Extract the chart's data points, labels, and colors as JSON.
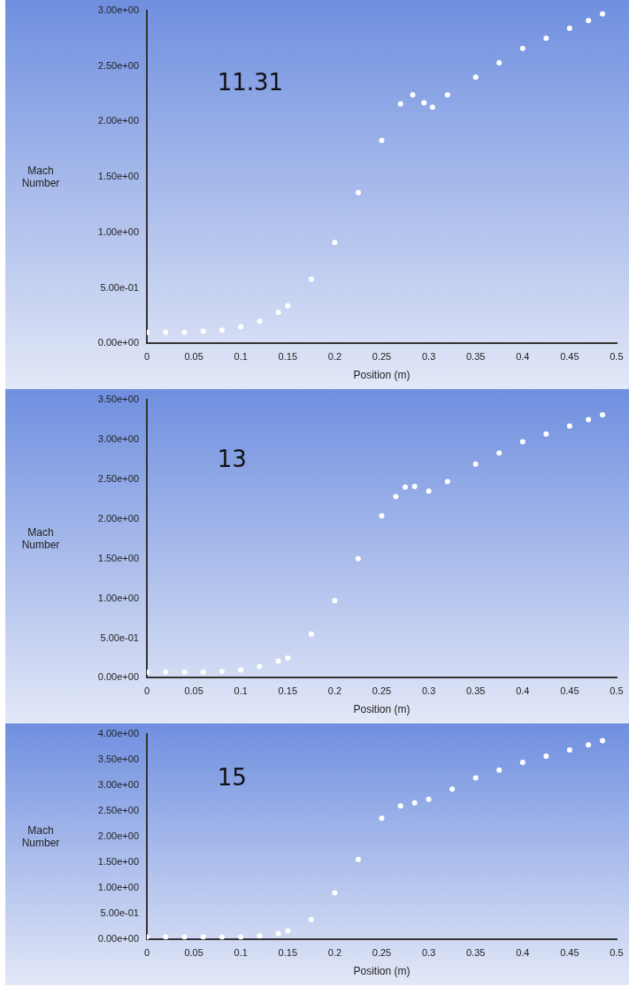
{
  "chart_data": [
    {
      "type": "scatter",
      "xlabel": "Position (m)",
      "ylabel": "Mach Number",
      "annotations": [
        "11.31"
      ],
      "marker": "circle",
      "grid": false,
      "legend": false,
      "xlim": [
        0,
        0.5
      ],
      "xticks": [
        0,
        0.05,
        0.1,
        0.15,
        0.2,
        0.25,
        0.3,
        0.35,
        0.4,
        0.45,
        0.5
      ],
      "ylim": [
        0,
        3
      ],
      "yticks": [
        {
          "value": 0,
          "label": "0.00e+00"
        },
        {
          "value": 0.5,
          "label": "5.00e-01"
        },
        {
          "value": 1,
          "label": "1.00e+00"
        },
        {
          "value": 1.5,
          "label": "1.50e+00"
        },
        {
          "value": 2,
          "label": "2.00e+00"
        },
        {
          "value": 2.5,
          "label": "2.50e+00"
        },
        {
          "value": 3,
          "label": "3.00e+00"
        }
      ],
      "series": [
        {
          "color": "#ffffff",
          "x": [
            0,
            0.02,
            0.04,
            0.06,
            0.08,
            0.1,
            0.12,
            0.14,
            0.15,
            0.175,
            0.2,
            0.225,
            0.25,
            0.27,
            0.283,
            0.295,
            0.304,
            0.32,
            0.35,
            0.375,
            0.4,
            0.425,
            0.45,
            0.47,
            0.485
          ],
          "values": [
            0.1,
            0.1,
            0.1,
            0.11,
            0.12,
            0.15,
            0.2,
            0.28,
            0.34,
            0.58,
            0.91,
            1.36,
            1.83,
            2.16,
            2.24,
            2.17,
            2.13,
            2.24,
            2.4,
            2.53,
            2.66,
            2.75,
            2.84,
            2.91,
            2.97
          ]
        }
      ]
    },
    {
      "type": "scatter",
      "xlabel": "Position (m)",
      "ylabel": "Mach Number",
      "annotations": [
        "13"
      ],
      "marker": "circle",
      "grid": false,
      "legend": false,
      "xlim": [
        0,
        0.5
      ],
      "xticks": [
        0,
        0.05,
        0.1,
        0.15,
        0.2,
        0.25,
        0.3,
        0.35,
        0.4,
        0.45,
        0.5
      ],
      "ylim": [
        0,
        3.5
      ],
      "yticks": [
        {
          "value": 0,
          "label": "0.00e+00"
        },
        {
          "value": 0.5,
          "label": "5.00e-01"
        },
        {
          "value": 1,
          "label": "1.00e+00"
        },
        {
          "value": 1.5,
          "label": "1.50e+00"
        },
        {
          "value": 2,
          "label": "2.00e+00"
        },
        {
          "value": 2.5,
          "label": "2.50e+00"
        },
        {
          "value": 3,
          "label": "3.00e+00"
        },
        {
          "value": 3.5,
          "label": "3.50e+00"
        }
      ],
      "series": [
        {
          "color": "#ffffff",
          "x": [
            0,
            0.02,
            0.04,
            0.06,
            0.08,
            0.1,
            0.12,
            0.14,
            0.15,
            0.175,
            0.2,
            0.225,
            0.25,
            0.265,
            0.275,
            0.285,
            0.3,
            0.32,
            0.35,
            0.375,
            0.4,
            0.425,
            0.45,
            0.47,
            0.485
          ],
          "values": [
            0.07,
            0.07,
            0.07,
            0.07,
            0.08,
            0.1,
            0.14,
            0.21,
            0.25,
            0.55,
            0.97,
            1.5,
            2.04,
            2.28,
            2.4,
            2.41,
            2.35,
            2.47,
            2.69,
            2.83,
            2.97,
            3.07,
            3.17,
            3.25,
            3.31
          ]
        }
      ]
    },
    {
      "type": "scatter",
      "xlabel": "Position (m)",
      "ylabel": "Mach Number",
      "annotations": [
        "15"
      ],
      "marker": "circle",
      "grid": false,
      "legend": false,
      "xlim": [
        0,
        0.5
      ],
      "xticks": [
        0,
        0.05,
        0.1,
        0.15,
        0.2,
        0.25,
        0.3,
        0.35,
        0.4,
        0.45,
        0.5
      ],
      "ylim": [
        0,
        4
      ],
      "yticks": [
        {
          "value": 0,
          "label": "0.00e+00"
        },
        {
          "value": 0.5,
          "label": "5.00e-01"
        },
        {
          "value": 1,
          "label": "1.00e+00"
        },
        {
          "value": 1.5,
          "label": "1.50e+00"
        },
        {
          "value": 2,
          "label": "2.00e+00"
        },
        {
          "value": 2.5,
          "label": "2.50e+00"
        },
        {
          "value": 3,
          "label": "3.00e+00"
        },
        {
          "value": 3.5,
          "label": "3.50e+00"
        },
        {
          "value": 4,
          "label": "4.00e+00"
        }
      ],
      "series": [
        {
          "color": "#ffffff",
          "x": [
            0,
            0.02,
            0.04,
            0.06,
            0.08,
            0.1,
            0.12,
            0.14,
            0.15,
            0.175,
            0.2,
            0.225,
            0.25,
            0.27,
            0.285,
            0.3,
            0.325,
            0.35,
            0.375,
            0.4,
            0.425,
            0.45,
            0.47,
            0.485
          ],
          "values": [
            0.05,
            0.05,
            0.05,
            0.05,
            0.05,
            0.05,
            0.07,
            0.12,
            0.17,
            0.39,
            0.91,
            1.56,
            2.36,
            2.6,
            2.66,
            2.73,
            2.93,
            3.15,
            3.3,
            3.45,
            3.57,
            3.69,
            3.79,
            3.87
          ]
        }
      ]
    }
  ]
}
